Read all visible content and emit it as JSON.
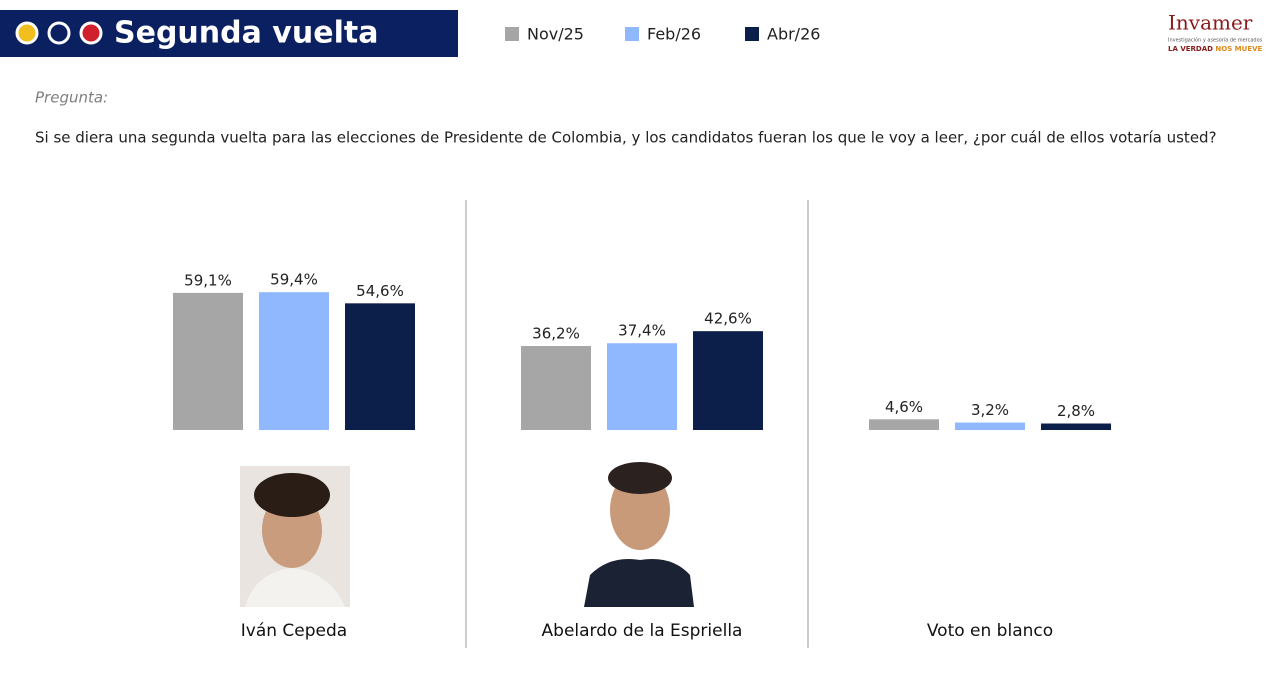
{
  "header": {
    "title": "Segunda vuelta",
    "brand": "Invamer",
    "brand_tagline": "Investigación y asesoría de mercados",
    "slogan": "LA VERDAD",
    "slogan_accent": "NOS MUEVE"
  },
  "question": {
    "label": "Pregunta:",
    "text": "Si se diera una segunda vuelta para las elecciones de Presidente de Colombia, y los candidatos fueran los que le voy a leer, ¿por cuál de ellos votaría usted?"
  },
  "chart_data": {
    "type": "bar",
    "legend": "top",
    "categories": [
      "Iván Cepeda",
      "Abelardo de la Espriella",
      "Voto en blanco"
    ],
    "series": [
      {
        "name": "Nov/25",
        "color": "#a6a6a6",
        "values": [
          59.1,
          36.2,
          4.6
        ],
        "value_labels": [
          "59,1%",
          "36,2%",
          "4,6%"
        ]
      },
      {
        "name": "Feb/26",
        "color": "#8fb8ff",
        "values": [
          59.4,
          37.4,
          3.2
        ],
        "value_labels": [
          "59,4%",
          "37,4%",
          "3,2%"
        ]
      },
      {
        "name": "Abr/26",
        "color": "#0c1f4a",
        "values": [
          54.6,
          42.6,
          2.8
        ],
        "value_labels": [
          "54,6%",
          "42,6%",
          "2,8%"
        ]
      }
    ]
  }
}
